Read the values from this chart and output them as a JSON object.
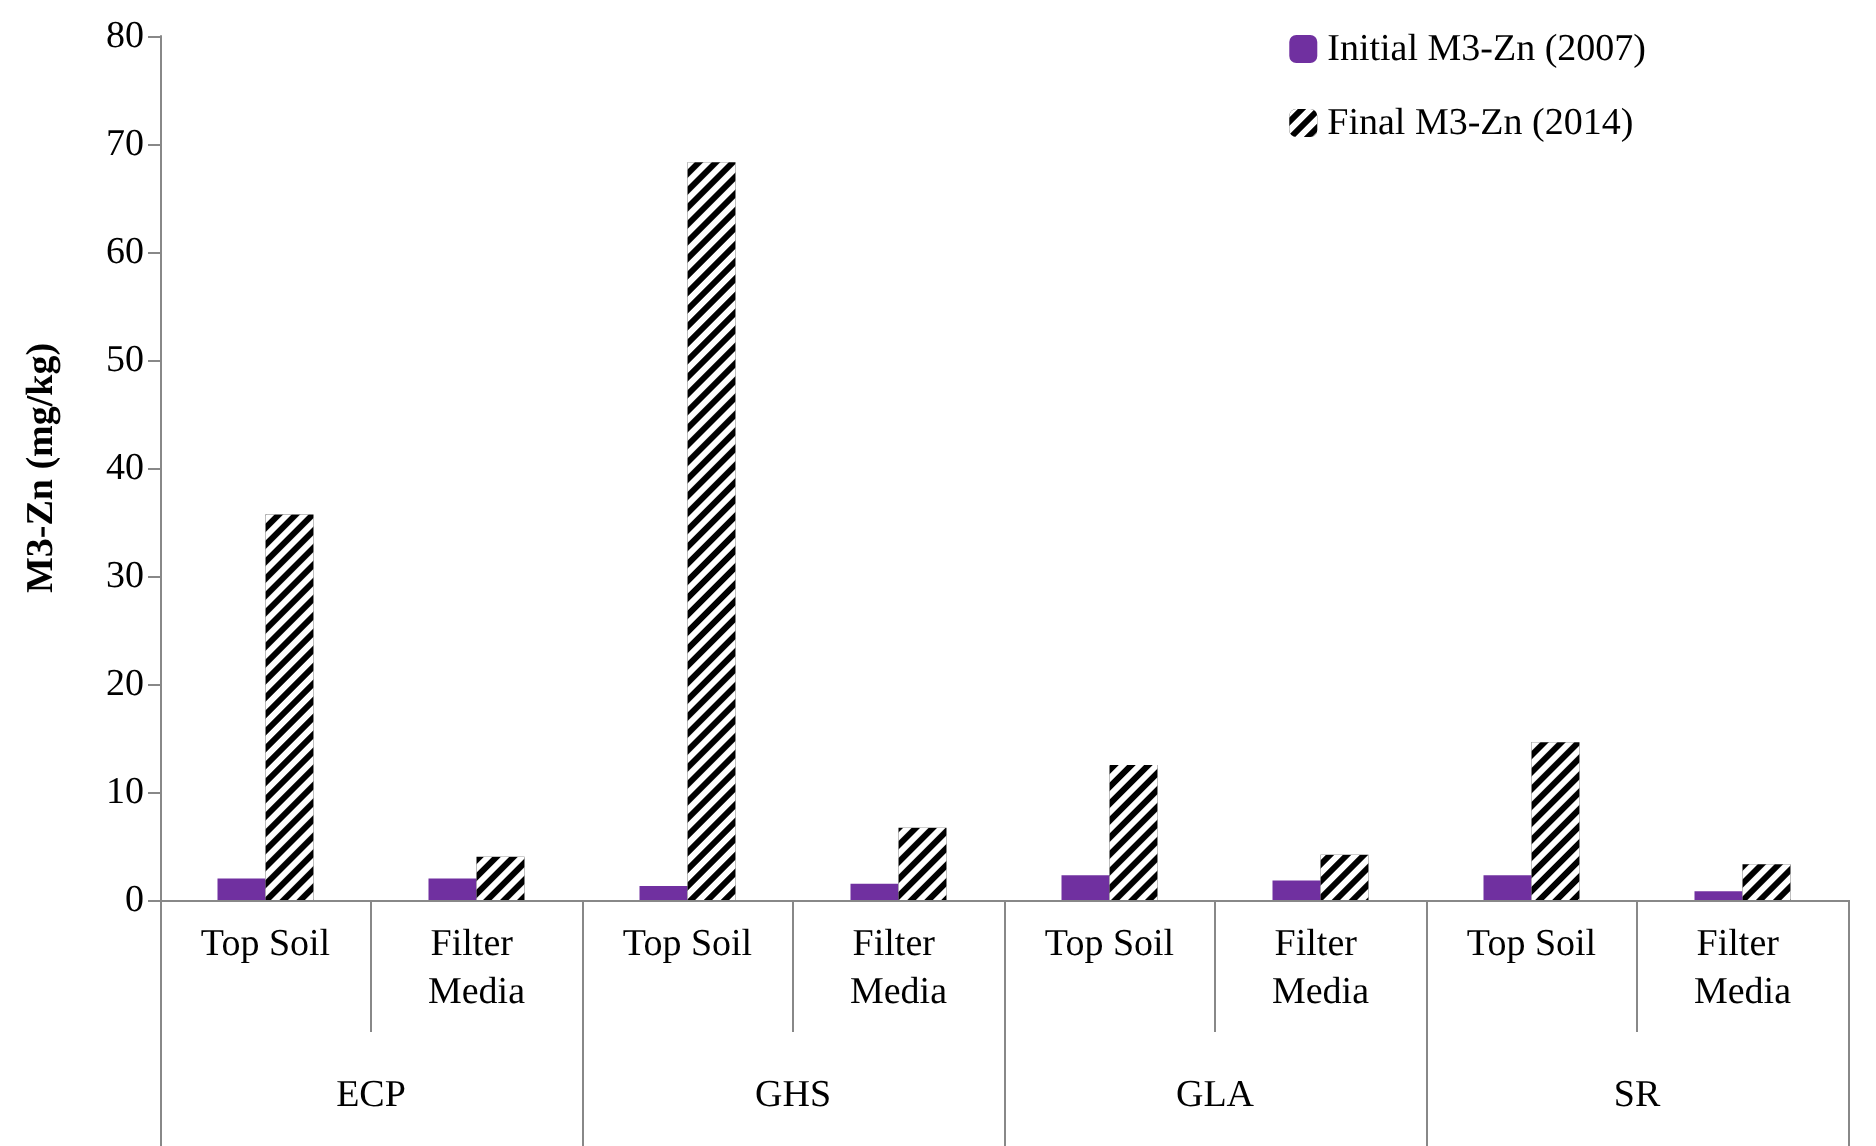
{
  "chart_data": {
    "type": "bar",
    "ylabel": "M3-Zn (mg/kg)",
    "categories": [
      "Top Soil",
      "Filter Media",
      "Top Soil",
      "Filter Media",
      "Top Soil",
      "Filter Media",
      "Top Soil",
      "Filter Media"
    ],
    "annotations": [
      "ECP",
      "GHS",
      "GLA",
      "SR"
    ],
    "series": [
      {
        "name": "Initial M3-Zn (2007)",
        "color": "#7030a0",
        "values": [
          2.0,
          2.0,
          1.3,
          1.5,
          2.3,
          1.8,
          2.3,
          0.8
        ]
      },
      {
        "name": "Final M3-Zn (2014)",
        "color": "#000000",
        "values": [
          35.7,
          4.0,
          68.3,
          6.7,
          12.5,
          4.2,
          14.6,
          3.3
        ]
      }
    ],
    "ylim": [
      0,
      80
    ],
    "yticks": [
      0,
      10,
      20,
      30,
      40,
      50,
      60,
      70,
      80
    ],
    "grid": false,
    "legend": "top right"
  }
}
